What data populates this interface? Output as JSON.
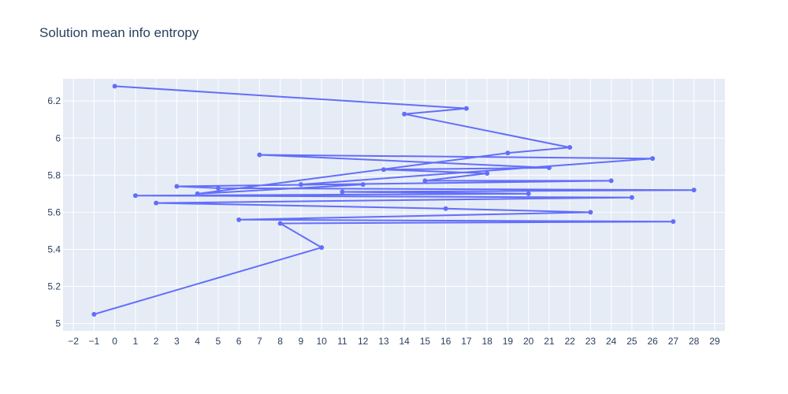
{
  "chart_data": {
    "type": "line",
    "title": "Solution mean info entropy",
    "xlabel": "",
    "ylabel": "",
    "xlim": [
      -2.5,
      29.5
    ],
    "ylim": [
      4.96,
      6.32
    ],
    "x_ticks": [
      -2,
      -1,
      0,
      1,
      2,
      3,
      4,
      5,
      6,
      7,
      8,
      9,
      10,
      11,
      12,
      13,
      14,
      15,
      16,
      17,
      18,
      19,
      20,
      21,
      22,
      23,
      24,
      25,
      26,
      27,
      28,
      29
    ],
    "x_tick_labels": [
      "−2",
      "−1",
      "0",
      "1",
      "2",
      "3",
      "4",
      "5",
      "6",
      "7",
      "8",
      "9",
      "10",
      "11",
      "12",
      "13",
      "14",
      "15",
      "16",
      "17",
      "18",
      "19",
      "20",
      "21",
      "22",
      "23",
      "24",
      "25",
      "26",
      "27",
      "28",
      "29"
    ],
    "y_ticks": [
      5,
      5.2,
      5.4,
      5.6,
      5.8,
      6,
      6.2
    ],
    "y_tick_labels": [
      "5",
      "5.2",
      "5.4",
      "5.6",
      "5.8",
      "6",
      "6.2"
    ],
    "grid": true,
    "legend": false,
    "series": [
      {
        "mode": "lines+markers",
        "color": "#636efa",
        "x": [
          -1,
          10,
          8,
          27,
          6,
          23,
          16,
          2,
          25,
          1,
          20,
          11,
          28,
          5,
          3,
          24,
          15,
          18,
          13,
          21,
          7,
          26,
          9,
          12,
          4,
          19,
          22,
          14,
          17,
          0
        ],
        "y": [
          5.05,
          5.41,
          5.54,
          5.55,
          5.56,
          5.6,
          5.62,
          5.65,
          5.68,
          5.69,
          5.7,
          5.71,
          5.72,
          5.73,
          5.74,
          5.77,
          5.77,
          5.81,
          5.83,
          5.84,
          5.91,
          5.89,
          5.75,
          5.75,
          5.7,
          5.92,
          5.95,
          6.13,
          6.16,
          6.28
        ]
      }
    ]
  }
}
